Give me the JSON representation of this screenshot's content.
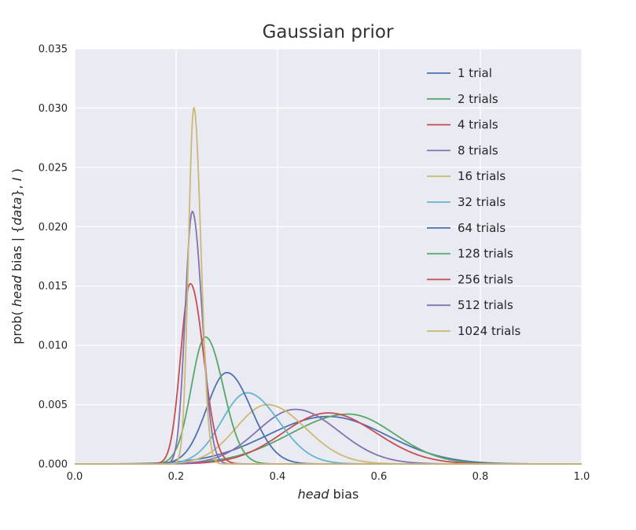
{
  "chart_data": {
    "type": "line",
    "title": "Gaussian prior",
    "xlabel": "head bias",
    "ylabel": "prob( head bias | {data}, I )",
    "xlabel_parts": [
      {
        "text": "head",
        "italic": true
      },
      {
        "text": " bias",
        "italic": false
      }
    ],
    "ylabel_parts": [
      {
        "text": "prob( ",
        "italic": false
      },
      {
        "text": "head",
        "italic": true
      },
      {
        "text": " bias | {",
        "italic": false
      },
      {
        "text": "data",
        "italic": true
      },
      {
        "text": "}, ",
        "italic": false
      },
      {
        "text": "I",
        "italic": true
      },
      {
        "text": " )",
        "italic": false
      }
    ],
    "xlim": [
      0.0,
      1.0
    ],
    "ylim": [
      0.0,
      0.035
    ],
    "xticks": [
      0.0,
      0.2,
      0.4,
      0.6,
      0.8,
      1.0
    ],
    "xtick_labels": [
      "0.0",
      "0.2",
      "0.4",
      "0.6",
      "0.8",
      "1.0"
    ],
    "yticks": [
      0.0,
      0.005,
      0.01,
      0.015,
      0.02,
      0.025,
      0.03,
      0.035
    ],
    "ytick_labels": [
      "0.000",
      "0.005",
      "0.010",
      "0.015",
      "0.020",
      "0.025",
      "0.030",
      "0.035"
    ],
    "grid": true,
    "grid_color": "#ffffff",
    "background": "#eaeaf2",
    "text_color": "#262626",
    "legend_position": "upper right",
    "legend_frame": false,
    "curve_model": "asymmetric_gaussian (peak_x, peak_y = curve maximum read from plot; sigmas estimated from curve widths)",
    "series": [
      {
        "name": "1 trial",
        "color": "#4c72b0",
        "peak_x": 0.5,
        "peak_y": 0.004,
        "sigma_left": 0.12,
        "sigma_right": 0.115
      },
      {
        "name": "2 trials",
        "color": "#55a868",
        "peak_x": 0.54,
        "peak_y": 0.0042,
        "sigma_left": 0.115,
        "sigma_right": 0.09
      },
      {
        "name": "4 trials",
        "color": "#c44e52",
        "peak_x": 0.5,
        "peak_y": 0.0043,
        "sigma_left": 0.09,
        "sigma_right": 0.095
      },
      {
        "name": "8 trials",
        "color": "#8172b2",
        "peak_x": 0.435,
        "peak_y": 0.0046,
        "sigma_left": 0.075,
        "sigma_right": 0.085
      },
      {
        "name": "16 trials",
        "color": "#ccb974",
        "peak_x": 0.38,
        "peak_y": 0.005,
        "sigma_left": 0.062,
        "sigma_right": 0.075
      },
      {
        "name": "32 trials",
        "color": "#64b5cd",
        "peak_x": 0.34,
        "peak_y": 0.006,
        "sigma_left": 0.05,
        "sigma_right": 0.062
      },
      {
        "name": "64 trials",
        "color": "#4c72b0",
        "peak_x": 0.3,
        "peak_y": 0.0077,
        "sigma_left": 0.04,
        "sigma_right": 0.048
      },
      {
        "name": "128 trials",
        "color": "#55a868",
        "peak_x": 0.258,
        "peak_y": 0.0107,
        "sigma_left": 0.028,
        "sigma_right": 0.035
      },
      {
        "name": "256 trials",
        "color": "#c44e52",
        "peak_x": 0.228,
        "peak_y": 0.0152,
        "sigma_left": 0.019,
        "sigma_right": 0.026
      },
      {
        "name": "512 trials",
        "color": "#8172b2",
        "peak_x": 0.232,
        "peak_y": 0.0213,
        "sigma_left": 0.014,
        "sigma_right": 0.019
      },
      {
        "name": "1024 trials",
        "color": "#ccb974",
        "peak_x": 0.235,
        "peak_y": 0.0301,
        "sigma_left": 0.0105,
        "sigma_right": 0.014
      }
    ]
  }
}
